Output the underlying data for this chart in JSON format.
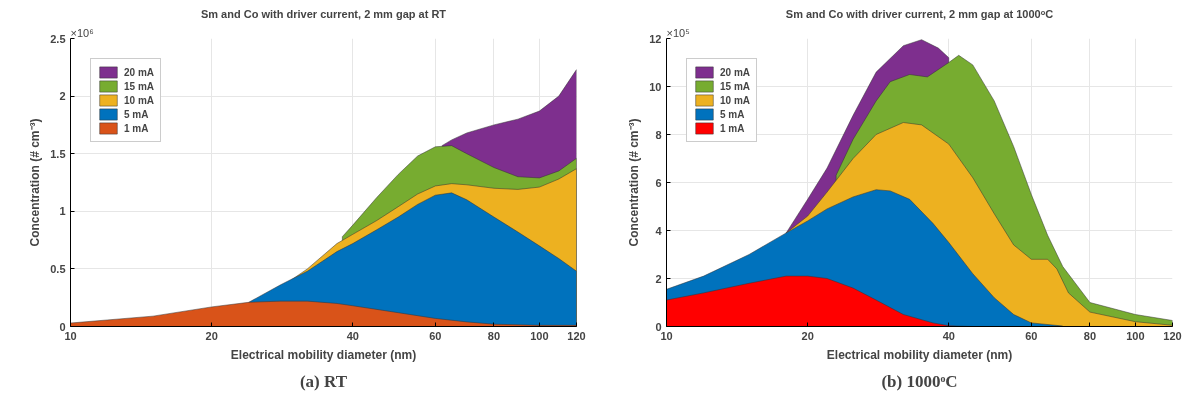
{
  "chart_data": [
    {
      "type": "area",
      "title": "Sm and Co with driver current, 2 mm gap at RT",
      "xlabel": "Electrical mobility diameter (nm)",
      "ylabel": "Concentration (# cm⁻³)",
      "log": "x",
      "xlim": [
        10,
        120
      ],
      "xticks": [
        10,
        20,
        40,
        60,
        80,
        100,
        120
      ],
      "ylim": [
        0,
        2.5
      ],
      "yticks": [
        0,
        0.5,
        1,
        1.5,
        2,
        2.5
      ],
      "grid": true,
      "legend": "top left",
      "annotations": [
        "×10⁶",
        "(a) RT"
      ],
      "series": [
        {
          "name": "20 mA",
          "color": "#7e2f8e",
          "x": [
            62,
            65,
            70,
            80,
            90,
            100,
            110,
            120
          ],
          "values": [
            1.57,
            1.62,
            1.68,
            1.75,
            1.8,
            1.87,
            2.0,
            2.23
          ]
        },
        {
          "name": "15 mA",
          "color": "#77ac30",
          "x": [
            38,
            40,
            45,
            50,
            55,
            60,
            65,
            70,
            80,
            90,
            100,
            110,
            120
          ],
          "values": [
            0.78,
            0.88,
            1.12,
            1.32,
            1.48,
            1.56,
            1.57,
            1.5,
            1.38,
            1.3,
            1.29,
            1.35,
            1.46
          ]
        },
        {
          "name": "10 mA",
          "color": "#edb120",
          "x": [
            29,
            32,
            37,
            40,
            45,
            50,
            55,
            60,
            65,
            70,
            80,
            90,
            100,
            110,
            120
          ],
          "values": [
            0.38,
            0.5,
            0.72,
            0.8,
            0.92,
            1.04,
            1.15,
            1.22,
            1.24,
            1.23,
            1.2,
            1.19,
            1.21,
            1.28,
            1.37
          ]
        },
        {
          "name": "5 mA",
          "color": "#0072bd",
          "x": [
            24,
            28,
            32,
            37,
            40,
            45,
            50,
            55,
            60,
            65,
            70,
            80,
            90,
            100,
            110,
            120
          ],
          "values": [
            0.21,
            0.36,
            0.48,
            0.65,
            0.72,
            0.84,
            0.95,
            1.06,
            1.14,
            1.16,
            1.1,
            0.95,
            0.82,
            0.7,
            0.59,
            0.48
          ]
        },
        {
          "name": "1 mA",
          "color": "#d95319",
          "x": [
            10,
            15,
            20,
            24,
            28,
            32,
            37,
            40,
            50,
            60,
            70,
            80,
            100,
            120
          ],
          "values": [
            0.03,
            0.09,
            0.17,
            0.21,
            0.22,
            0.22,
            0.2,
            0.18,
            0.12,
            0.07,
            0.04,
            0.02,
            0.01,
            0.01
          ]
        }
      ]
    },
    {
      "type": "area",
      "title": "Sm and Co with driver current, 2 mm gap at 1000ᵒC",
      "xlabel": "Electrical mobility diameter (nm)",
      "ylabel": "Concentration (# cm⁻³)",
      "log": "x",
      "xlim": [
        10,
        120
      ],
      "xticks": [
        10,
        20,
        40,
        60,
        80,
        100,
        120
      ],
      "ylim": [
        0,
        12
      ],
      "yticks": [
        0,
        2,
        4,
        6,
        8,
        10,
        12
      ],
      "grid": true,
      "legend": "top left",
      "annotations": [
        "×10⁵",
        "(b) 1000ᵒC"
      ],
      "series": [
        {
          "name": "20 mA",
          "color": "#7e2f8e",
          "x": [
            18,
            20,
            22,
            25,
            28,
            32,
            35,
            38,
            40
          ],
          "values": [
            3.9,
            5.3,
            6.6,
            8.8,
            10.6,
            11.7,
            11.95,
            11.6,
            11.2
          ]
        },
        {
          "name": "15 mA",
          "color": "#77ac30",
          "x": [
            23,
            25,
            28,
            30,
            33,
            36,
            40,
            42,
            45,
            50,
            55,
            60,
            65,
            70,
            80,
            100,
            120
          ],
          "values": [
            6.3,
            7.8,
            9.4,
            10.2,
            10.5,
            10.4,
            11.0,
            11.3,
            10.9,
            9.4,
            7.5,
            5.5,
            3.8,
            2.5,
            1.0,
            0.5,
            0.25
          ]
        },
        {
          "name": "10 mA",
          "color": "#edb120",
          "x": [
            18,
            20,
            22,
            25,
            28,
            32,
            35,
            40,
            45,
            50,
            55,
            60,
            65,
            68,
            72,
            80,
            100,
            120
          ],
          "values": [
            3.9,
            4.6,
            5.6,
            7.0,
            8.0,
            8.5,
            8.4,
            7.6,
            6.2,
            4.7,
            3.4,
            2.8,
            2.8,
            2.4,
            1.4,
            0.6,
            0.2,
            0.05
          ]
        },
        {
          "name": "5 mA",
          "color": "#0072bd",
          "x": [
            10,
            12,
            15,
            18,
            20,
            22,
            25,
            28,
            30,
            33,
            37,
            40,
            45,
            50,
            55,
            60,
            70
          ],
          "values": [
            1.55,
            2.1,
            3.0,
            3.9,
            4.4,
            4.9,
            5.4,
            5.7,
            5.65,
            5.3,
            4.3,
            3.5,
            2.2,
            1.2,
            0.5,
            0.15,
            0.02
          ]
        },
        {
          "name": "1 mA",
          "color": "#ff0000",
          "x": [
            10,
            12,
            15,
            18,
            20,
            22,
            25,
            28,
            32,
            37,
            40,
            45
          ],
          "values": [
            1.1,
            1.4,
            1.8,
            2.1,
            2.1,
            2.0,
            1.6,
            1.1,
            0.5,
            0.15,
            0.03,
            0.0
          ]
        }
      ]
    }
  ]
}
